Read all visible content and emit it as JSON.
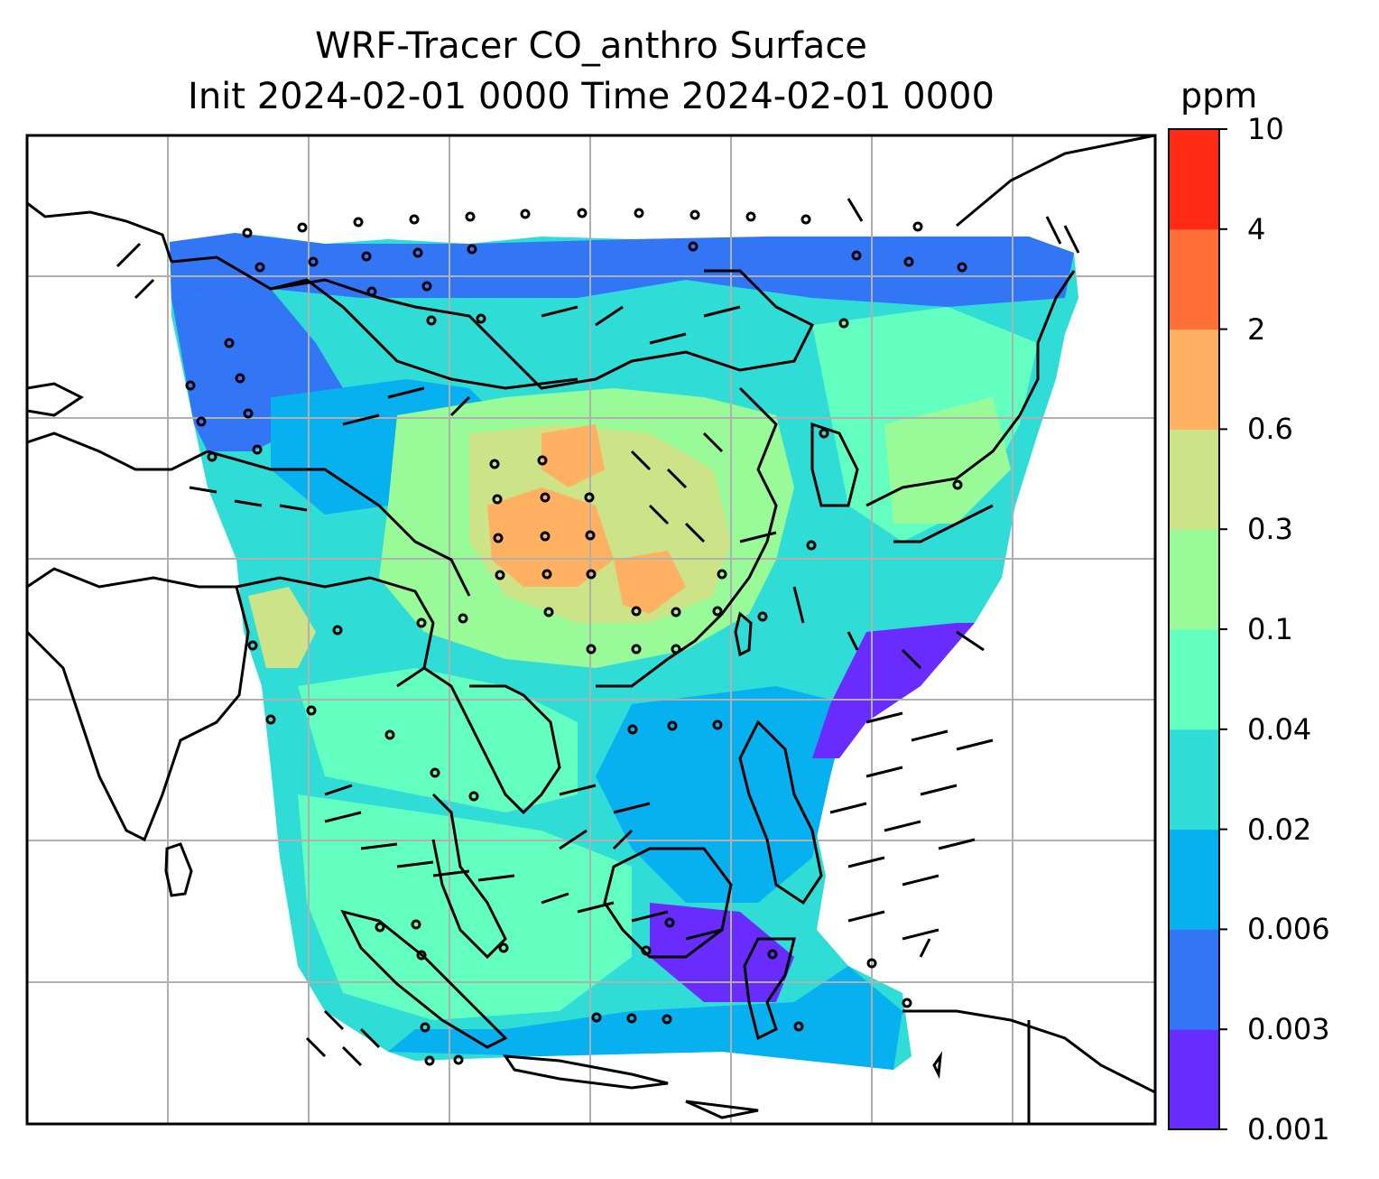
{
  "title_line1": "WRF-Tracer CO_anthro Surface",
  "title_line2": "Init 2024-02-01 0000 Time 2024-02-01 0000",
  "colorbar": {
    "unit": "ppm",
    "ticks": [
      "0.001",
      "0.003",
      "0.006",
      "0.02",
      "0.04",
      "0.1",
      "0.3",
      "0.6",
      "2",
      "4",
      "10"
    ],
    "colors": [
      "#6a2bff",
      "#3275f5",
      "#07b0ee",
      "#2fdcd6",
      "#62ffc0",
      "#98fb98",
      "#cde388",
      "#ffb060",
      "#ff7038",
      "#ff2a14"
    ]
  },
  "map": {
    "layers": [
      "coastlines",
      "country-borders",
      "gridlines",
      "co-concentration-fill",
      "wind-barbs"
    ],
    "barb_color": "#000000",
    "gridline_color": "#b0b0b0"
  }
}
